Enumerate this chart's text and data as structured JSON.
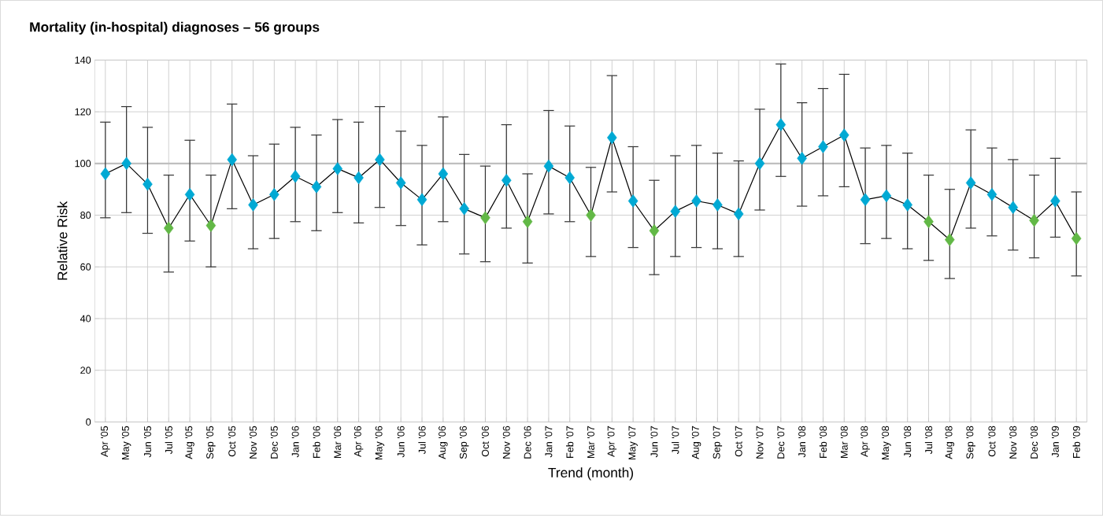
{
  "chart_data": {
    "type": "line",
    "title": "Mortality (in-hospital) diagnoses – 56 groups",
    "xlabel": "Trend (month)",
    "ylabel": "Relative Risk",
    "categories": [
      "Apr '05",
      "May '05",
      "Jun '05",
      "Jul '05",
      "Aug '05",
      "Sep '05",
      "Oct '05",
      "Nov '05",
      "Dec '05",
      "Jan '06",
      "Feb '06",
      "Mar '06",
      "Apr '06",
      "May '06",
      "Jun '06",
      "Jul '06",
      "Aug '06",
      "Sep '06",
      "Oct '06",
      "Nov '06",
      "Dec '06",
      "Jan '07",
      "Feb '07",
      "Mar '07",
      "Apr '07",
      "May '07",
      "Jun '07",
      "Jul '07",
      "Aug '07",
      "Sep '07",
      "Oct '07",
      "Nov '07",
      "Dec '07",
      "Jan '08",
      "Feb '08",
      "Mar '08",
      "Apr '08",
      "May '08",
      "Jun '08",
      "Jul '08",
      "Aug '08",
      "Sep '08",
      "Oct '08",
      "Nov '08",
      "Dec '08",
      "Jan '09",
      "Feb '09"
    ],
    "values": [
      96,
      100,
      92,
      75,
      88,
      76,
      101.5,
      84,
      88,
      95,
      91,
      98,
      94.5,
      101.5,
      92.5,
      86,
      96,
      82.5,
      79,
      93.5,
      77.5,
      99,
      94.5,
      80,
      110,
      85.5,
      74,
      81.5,
      85.5,
      84,
      80.5,
      100,
      115,
      102,
      106.5,
      111,
      86,
      87.5,
      84,
      77.5,
      70.5,
      92.5,
      88,
      83,
      78,
      85.5,
      71
    ],
    "errors": [
      [
        79,
        116
      ],
      [
        81,
        122
      ],
      [
        73,
        114
      ],
      [
        58,
        95.5
      ],
      [
        70,
        109
      ],
      [
        60,
        95.5
      ],
      [
        82.5,
        123
      ],
      [
        67,
        103
      ],
      [
        71,
        107.5
      ],
      [
        77.5,
        114
      ],
      [
        74,
        111
      ],
      [
        81,
        117
      ],
      [
        77,
        116
      ],
      [
        83,
        122
      ],
      [
        76,
        112.5
      ],
      [
        68.5,
        107
      ],
      [
        77.5,
        118
      ],
      [
        65,
        103.5
      ],
      [
        62,
        99
      ],
      [
        75,
        115
      ],
      [
        61.5,
        96
      ],
      [
        80.5,
        120.5
      ],
      [
        77.5,
        114.5
      ],
      [
        64,
        98.5
      ],
      [
        89,
        134
      ],
      [
        67.5,
        106.5
      ],
      [
        57,
        93.5
      ],
      [
        64,
        103
      ],
      [
        67.5,
        107
      ],
      [
        67,
        104
      ],
      [
        64,
        101
      ],
      [
        82,
        121
      ],
      [
        95,
        138.5
      ],
      [
        83.5,
        123.5
      ],
      [
        87.5,
        129
      ],
      [
        91,
        134.5
      ],
      [
        69,
        106
      ],
      [
        71,
        107
      ],
      [
        67,
        104
      ],
      [
        62.5,
        95.5
      ],
      [
        55.5,
        90
      ],
      [
        75,
        113
      ],
      [
        72,
        106
      ],
      [
        66.5,
        101.5
      ],
      [
        63.5,
        95.5
      ],
      [
        71.5,
        102
      ],
      [
        56.5,
        89
      ]
    ],
    "colors": [
      "#00a9d4",
      "#00a9d4",
      "#00a9d4",
      "#62b846",
      "#00a9d4",
      "#62b846",
      "#00a9d4",
      "#00a9d4",
      "#00a9d4",
      "#00a9d4",
      "#00a9d4",
      "#00a9d4",
      "#00a9d4",
      "#00a9d4",
      "#00a9d4",
      "#00a9d4",
      "#00a9d4",
      "#00a9d4",
      "#62b846",
      "#00a9d4",
      "#62b846",
      "#00a9d4",
      "#00a9d4",
      "#62b846",
      "#00a9d4",
      "#00a9d4",
      "#62b846",
      "#00a9d4",
      "#00a9d4",
      "#00a9d4",
      "#00a9d4",
      "#00a9d4",
      "#00a9d4",
      "#00a9d4",
      "#00a9d4",
      "#00a9d4",
      "#00a9d4",
      "#00a9d4",
      "#00a9d4",
      "#62b846",
      "#62b846",
      "#00a9d4",
      "#00a9d4",
      "#00a9d4",
      "#62b846",
      "#00a9d4",
      "#62b846"
    ],
    "ylim": [
      0,
      140
    ],
    "yticks": [
      0,
      20,
      40,
      60,
      80,
      100,
      120,
      140
    ],
    "grid": true,
    "marker": "diamond",
    "line_style": "solid",
    "ref_lines": [
      {
        "axis": "y",
        "value": 100,
        "color": "#bfbfbf"
      }
    ]
  }
}
